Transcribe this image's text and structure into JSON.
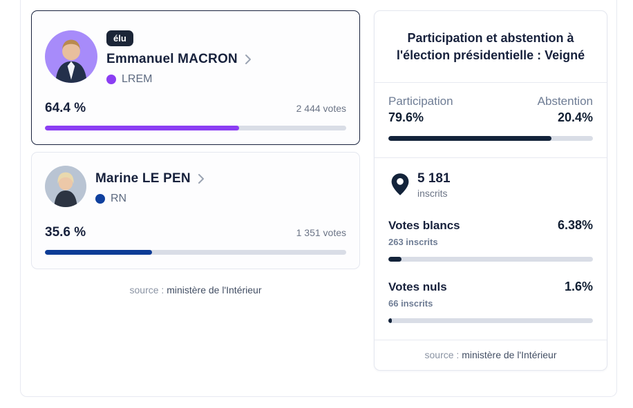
{
  "colors": {
    "macron_purple": "#8b3ef3",
    "macron_avatar_bg": "#a78bfa",
    "lepen_blue": "#10409e",
    "lepen_avatar_bg": "#b9c4d3",
    "participation_navy": "#13233a",
    "badge_navy": "#1b2537",
    "track_gray": "#d9dde6"
  },
  "candidates": [
    {
      "badge": "élu",
      "name": "Emmanuel MACRON",
      "party": "LREM",
      "party_color": "#8b3ef3",
      "avatar_bg": "#a78bfa",
      "percent": "64.4 %",
      "percent_value": 64.4,
      "votes": "2 444 votes",
      "bar_color": "#8b3ef3"
    },
    {
      "badge": "",
      "name": "Marine LE PEN",
      "party": "RN",
      "party_color": "#10409e",
      "avatar_bg": "#b9c4d3",
      "percent": "35.6 %",
      "percent_value": 35.6,
      "votes": "1 351 votes",
      "bar_color": "#0d3c96"
    }
  ],
  "results_source": {
    "prefix": "source :",
    "name": "ministère de l'Intérieur"
  },
  "panel": {
    "title": "Participation et abstention à l'élection présidentielle : Veigné",
    "participation": {
      "label": "Participation",
      "value": "79.6%",
      "percent_value": 79.6,
      "bar_color": "#13233a"
    },
    "abstention": {
      "label": "Abstention",
      "value": "20.4%"
    },
    "inscrits": {
      "count": "5 181",
      "label": "inscrits"
    },
    "stats": [
      {
        "label": "Votes blancs",
        "value": "6.38%",
        "percent_value": 6.38,
        "sub": "263 inscrits",
        "bar_color": "#13233a"
      },
      {
        "label": "Votes nuls",
        "value": "1.6%",
        "percent_value": 1.6,
        "sub": "66 inscrits",
        "bar_color": "#13233a"
      }
    ],
    "source": {
      "prefix": "source :",
      "name": "ministère de l'Intérieur"
    }
  }
}
